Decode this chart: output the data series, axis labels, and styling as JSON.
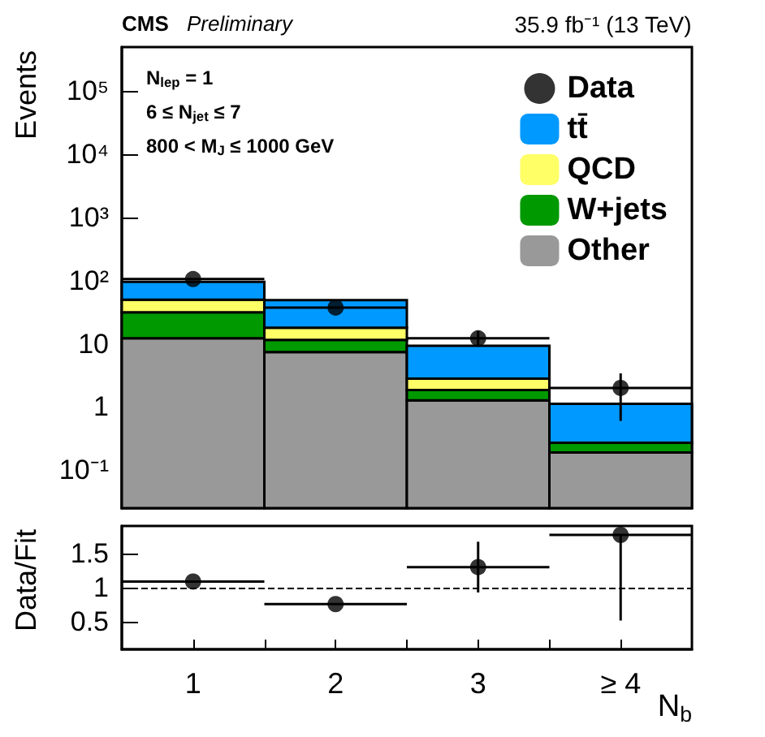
{
  "chart_data": [
    {
      "type": "bar",
      "title": "CMS",
      "subtitle": "Preliminary",
      "ylabel": "Events",
      "x": [
        1,
        2,
        3,
        4
      ],
      "xlim": [
        0.5,
        4.5
      ],
      "stacked": true,
      "log": "y",
      "ylim": [
        0.025,
        500000
      ],
      "yticks": [
        {
          "value": 0.1,
          "label": "10⁻¹"
        },
        1,
        10,
        {
          "value": 100,
          "label": "10²"
        },
        {
          "value": 1000,
          "label": "10³"
        },
        {
          "value": 10000,
          "label": "10⁴"
        },
        {
          "value": 100000,
          "label": "10⁵"
        }
      ],
      "tick_labels": "y",
      "legend": "top right",
      "grid": false,
      "annotations": [
        "35.9 fb⁻¹ (13 TeV)",
        "N$_{lep}$ = 1",
        "6 ≤ N$_{jet}$ ≤ 7",
        "800 < M$_{J}$ ≤ 1000 GeV"
      ],
      "series": [
        {
          "name": "Other",
          "color": "#999999",
          "values": [
            12.2,
            7.4,
            1.27,
            0.19
          ]
        },
        {
          "name": "W+jets",
          "color": "#009900",
          "values": [
            19.3,
            4.1,
            0.58,
            0.08
          ]
        },
        {
          "name": "QCD",
          "color": "#ffff66",
          "values": [
            18.5,
            6.5,
            0.95,
            null
          ]
        },
        {
          "name": "tt̄",
          "color": "#0099ff",
          "values": [
            46,
            31,
            6.5,
            0.85
          ]
        },
        {
          "name": "Data",
          "type": "scatter",
          "color": "#000000",
          "marker": "circle",
          "values": [
            106,
            37.5,
            12.2,
            2
          ],
          "errors": [
            null,
            null,
            [
              9,
              16
            ],
            [
              0.6,
              3.4
            ]
          ],
          "xerrors": [
            0.5,
            0.5,
            0.5,
            0.5
          ]
        }
      ]
    },
    {
      "type": "scatter",
      "ylabel": "Data/Fit",
      "xlabel": "N$_{b}$",
      "x": [
        1,
        2,
        3,
        4
      ],
      "xlim": [
        0.5,
        4.5
      ],
      "xticks": [
        1,
        {
          "value": 1.5,
          "label": null
        },
        2,
        {
          "value": 2.5,
          "label": null
        },
        3,
        {
          "value": 3.5,
          "label": null
        },
        {
          "value": 4,
          "label": "≥ 4"
        }
      ],
      "ylim": [
        0.1,
        1.9
      ],
      "yticks": [
        0.5,
        1,
        1.5
      ],
      "grid": false,
      "marker": "circle",
      "ref_lines": [
        {
          "axis": "y",
          "value": 1,
          "line_style": "dashed",
          "color": "#000000"
        }
      ],
      "series": [
        {
          "color": "#000000",
          "values": [
            1.09,
            0.76,
            1.3,
            1.77
          ],
          "errors": [
            null,
            null,
            [
              0.93,
              1.67
            ],
            [
              0.52,
              1.77
            ]
          ],
          "xerrors": [
            0.5,
            0.5,
            0.5,
            0.5
          ]
        }
      ]
    }
  ]
}
